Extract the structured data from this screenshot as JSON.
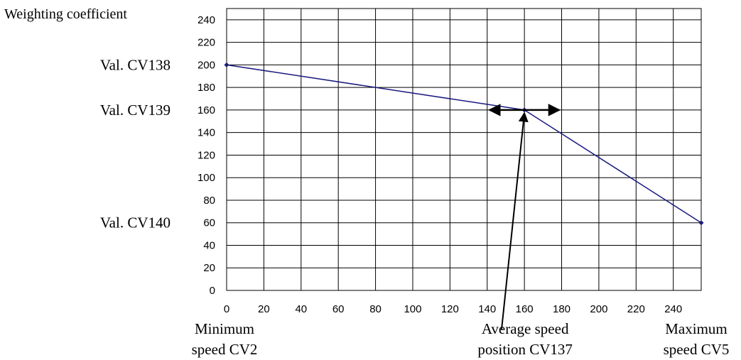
{
  "chart_data": {
    "type": "line",
    "ylabel": "Weighting coefficient",
    "x_ticks": [
      0,
      20,
      40,
      60,
      80,
      100,
      120,
      140,
      160,
      180,
      200,
      220,
      240
    ],
    "y_ticks": [
      0,
      20,
      40,
      60,
      80,
      100,
      120,
      140,
      160,
      180,
      200,
      220,
      240
    ],
    "xlim": [
      0,
      255
    ],
    "ylim": [
      0,
      250
    ],
    "grid": true,
    "series": [
      {
        "color": "#1a1a80",
        "points": [
          {
            "x": 0,
            "y": 200
          },
          {
            "x": 160,
            "y": 160
          },
          {
            "x": 255,
            "y": 60
          }
        ]
      }
    ],
    "y_annotations": [
      {
        "text": "Val. CV138",
        "y": 200
      },
      {
        "text": "Val. CV139",
        "y": 160
      },
      {
        "text": "Val. CV140",
        "y": 60
      }
    ],
    "x_annotations": [
      {
        "lines": [
          "Minimum",
          "speed CV2"
        ],
        "x": 0
      },
      {
        "lines": [
          "Average speed",
          "position CV137"
        ],
        "x": 160
      },
      {
        "lines": [
          "Maximum",
          "speed CV5"
        ],
        "x": 255
      }
    ],
    "arrows": {
      "horizontal_double_arrow_at": {
        "x": 160,
        "y": 160,
        "span": [
          145,
          175
        ]
      },
      "pointer_to": {
        "x": 160,
        "y": 160
      }
    }
  }
}
